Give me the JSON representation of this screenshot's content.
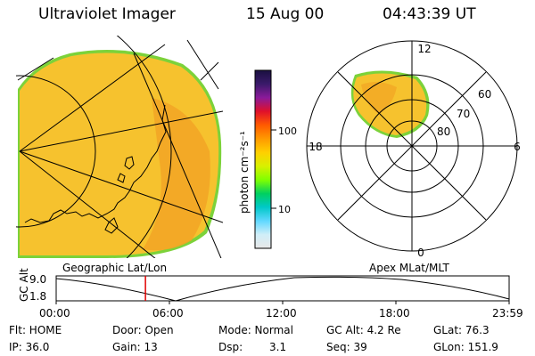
{
  "header": {
    "instrument": "Ultraviolet Imager",
    "date": "15 Aug 00",
    "time": "04:43:39 UT"
  },
  "colors": {
    "aurora_main": "#f6c22e",
    "aurora_hot": "#f2a424",
    "aurora_edge": "#7cd23a",
    "marker": "#e00000"
  },
  "image_labels": {
    "left": "Geographic Lat/Lon",
    "right": "Apex MLat/MLT"
  },
  "colorbar": {
    "unit_label": "photon cm⁻²s⁻¹",
    "ticks": [
      "100",
      "10"
    ],
    "stops": [
      "#1a1040",
      "#3a1a6a",
      "#8a1a9a",
      "#e0102a",
      "#ff5a00",
      "#ff9a00",
      "#ffd000",
      "#d8f000",
      "#80ff00",
      "#00d060",
      "#00c8c8",
      "#60d8ff",
      "#d0eef8",
      "#e8e8e8"
    ]
  },
  "polar": {
    "mlt_labels": {
      "top": "12",
      "left": "18",
      "right": "6",
      "bottom": "0"
    },
    "lat_labels": [
      "60",
      "70",
      "80"
    ]
  },
  "altitude_plot": {
    "ylabel": "GC Alt",
    "ymax": "9.0",
    "ymin": "1.8",
    "x_ticks": [
      "00:00",
      "06:00",
      "12:00",
      "18:00",
      "23:59"
    ],
    "marker_time_hours": 4.73
  },
  "status": {
    "flt": "Flt: HOME",
    "ip": "IP: 36.0",
    "door": "Door: Open",
    "gain": "Gain: 13",
    "mode": "Mode: Normal",
    "dsp_label": "Dsp:",
    "dsp_value": "3.1",
    "gc_alt": "GC Alt: 4.2 Re",
    "seq": "Seq: 39",
    "glat": "GLat: 76.3",
    "glon": "GLon: 151.9"
  }
}
